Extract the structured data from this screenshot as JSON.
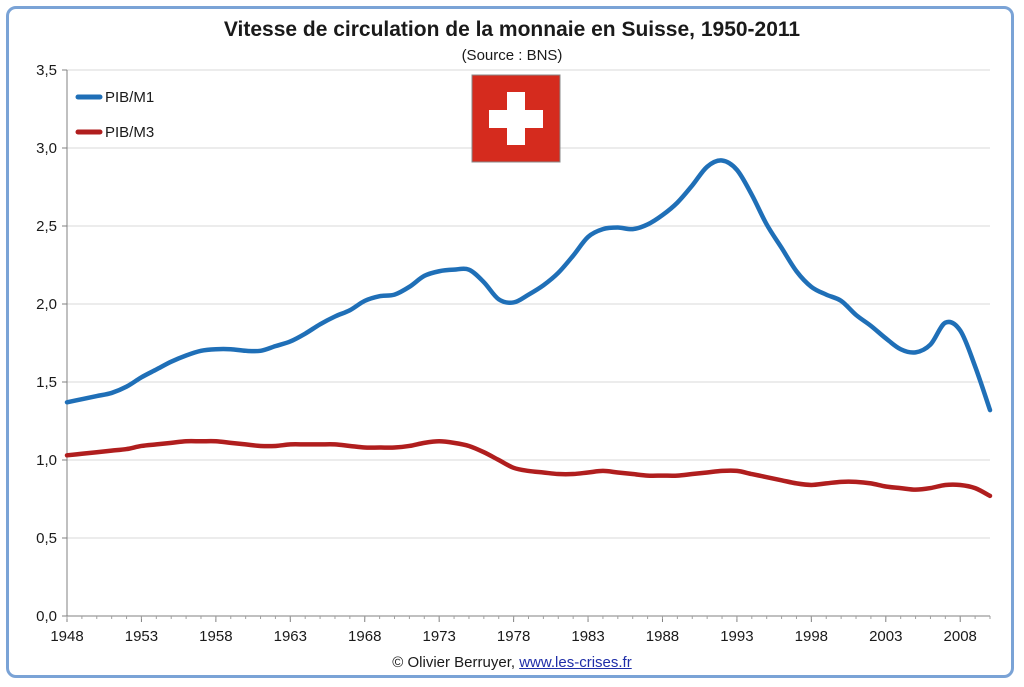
{
  "title": "Vitesse de circulation de la monnaie en Suisse, 1950-2011",
  "subtitle": "(Source : BNS)",
  "footer": {
    "credit": "© Olivier Berruyer,",
    "link": "www.les-crises.fr"
  },
  "flag": {
    "background": "#d52b1e",
    "cross": "#ffffff"
  },
  "chart_data": {
    "type": "line",
    "title": "Vitesse de circulation de la monnaie en Suisse, 1950-2011",
    "xlabel": "",
    "ylabel": "",
    "xlim": [
      1948,
      2010
    ],
    "ylim": [
      0,
      3.5
    ],
    "grid": true,
    "legend_position": "top-left",
    "x_ticks": [
      1948,
      1953,
      1958,
      1963,
      1968,
      1973,
      1978,
      1983,
      1988,
      1993,
      1998,
      2003,
      2008
    ],
    "x_tick_labels": [
      "1948",
      "1953",
      "1958",
      "1963",
      "1968",
      "1973",
      "1978",
      "1983",
      "1988",
      "1993",
      "1998",
      "2003",
      "2008"
    ],
    "y_ticks": [
      0,
      0.5,
      1,
      1.5,
      2,
      2.5,
      3,
      3.5
    ],
    "y_tick_labels": [
      "0,0",
      "0,5",
      "1,0",
      "1,5",
      "2,0",
      "2,5",
      "3,0",
      "3,5"
    ],
    "series": [
      {
        "name": "PIB/M1",
        "color": "#1f6fb7",
        "x": [
          1948,
          1949,
          1950,
          1951,
          1952,
          1953,
          1954,
          1955,
          1956,
          1957,
          1958,
          1959,
          1960,
          1961,
          1962,
          1963,
          1964,
          1965,
          1966,
          1967,
          1968,
          1969,
          1970,
          1971,
          1972,
          1973,
          1974,
          1975,
          1976,
          1977,
          1978,
          1979,
          1980,
          1981,
          1982,
          1983,
          1984,
          1985,
          1986,
          1987,
          1988,
          1989,
          1990,
          1991,
          1992,
          1993,
          1994,
          1995,
          1996,
          1997,
          1998,
          1999,
          2000,
          2001,
          2002,
          2003,
          2004,
          2005,
          2006,
          2007,
          2008,
          2009,
          2010
        ],
        "values": [
          1.37,
          1.39,
          1.41,
          1.43,
          1.47,
          1.53,
          1.58,
          1.63,
          1.67,
          1.7,
          1.71,
          1.71,
          1.7,
          1.7,
          1.73,
          1.76,
          1.81,
          1.87,
          1.92,
          1.96,
          2.02,
          2.05,
          2.06,
          2.11,
          2.18,
          2.21,
          2.22,
          2.22,
          2.14,
          2.03,
          2.01,
          2.06,
          2.12,
          2.2,
          2.31,
          2.43,
          2.48,
          2.49,
          2.48,
          2.51,
          2.57,
          2.65,
          2.76,
          2.88,
          2.92,
          2.86,
          2.7,
          2.51,
          2.36,
          2.21,
          2.11,
          2.06,
          2.02,
          1.93,
          1.86,
          1.78,
          1.71,
          1.69,
          1.74,
          1.88,
          1.83,
          1.6,
          1.32
        ]
      },
      {
        "name": "PIB/M3",
        "color": "#b01e1e",
        "x": [
          1948,
          1949,
          1950,
          1951,
          1952,
          1953,
          1954,
          1955,
          1956,
          1957,
          1958,
          1959,
          1960,
          1961,
          1962,
          1963,
          1964,
          1965,
          1966,
          1967,
          1968,
          1969,
          1970,
          1971,
          1972,
          1973,
          1974,
          1975,
          1976,
          1977,
          1978,
          1979,
          1980,
          1981,
          1982,
          1983,
          1984,
          1985,
          1986,
          1987,
          1988,
          1989,
          1990,
          1991,
          1992,
          1993,
          1994,
          1995,
          1996,
          1997,
          1998,
          1999,
          2000,
          2001,
          2002,
          2003,
          2004,
          2005,
          2006,
          2007,
          2008,
          2009,
          2010
        ],
        "values": [
          1.03,
          1.04,
          1.05,
          1.06,
          1.07,
          1.09,
          1.1,
          1.11,
          1.12,
          1.12,
          1.12,
          1.11,
          1.1,
          1.09,
          1.09,
          1.1,
          1.1,
          1.1,
          1.1,
          1.09,
          1.08,
          1.08,
          1.08,
          1.09,
          1.11,
          1.12,
          1.11,
          1.09,
          1.05,
          1.0,
          0.95,
          0.93,
          0.92,
          0.91,
          0.91,
          0.92,
          0.93,
          0.92,
          0.91,
          0.9,
          0.9,
          0.9,
          0.91,
          0.92,
          0.93,
          0.93,
          0.91,
          0.89,
          0.87,
          0.85,
          0.84,
          0.85,
          0.86,
          0.86,
          0.85,
          0.83,
          0.82,
          0.81,
          0.82,
          0.84,
          0.84,
          0.82,
          0.77
        ]
      }
    ]
  }
}
